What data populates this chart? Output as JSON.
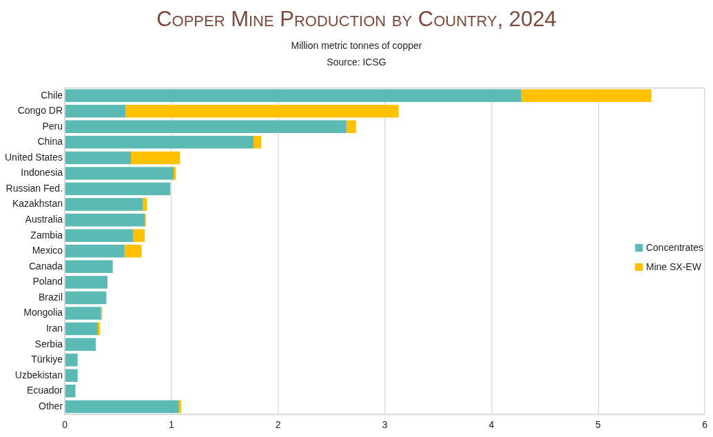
{
  "chart_data": {
    "type": "bar",
    "orientation": "horizontal",
    "stacked": true,
    "title": "Copper Mine Production by Country, 2024",
    "subtitle": "Million metric tonnes of copper",
    "annotations": [
      "Source: ICSG"
    ],
    "categories": [
      "Chile",
      "Congo DR",
      "Peru",
      "China",
      "United States",
      "Indonesia",
      "Russian Fed.",
      "Kazakhstan",
      "Australia",
      "Zambia",
      "Mexico",
      "Canada",
      "Poland",
      "Brazil",
      "Mongolia",
      "Iran",
      "Serbia",
      "Türkiye",
      "Uzbekistan",
      "Ecuador",
      "Other"
    ],
    "series": [
      {
        "name": "Concentrates",
        "color": "#5cbab5",
        "values": [
          4.28,
          0.57,
          2.64,
          1.77,
          0.62,
          1.02,
          0.99,
          0.73,
          0.75,
          0.64,
          0.56,
          0.45,
          0.4,
          0.39,
          0.34,
          0.31,
          0.29,
          0.12,
          0.12,
          0.1,
          1.07
        ]
      },
      {
        "name": "Mine SX-EW",
        "color": "#ffc000",
        "values": [
          1.22,
          2.56,
          0.09,
          0.07,
          0.46,
          0.02,
          0,
          0.04,
          0.01,
          0.11,
          0.16,
          0,
          0,
          0,
          0.01,
          0.02,
          0,
          0,
          0,
          0,
          0.02
        ]
      }
    ],
    "xlim": [
      0,
      6
    ],
    "xticks": [
      0,
      1,
      2,
      3,
      4,
      5,
      6
    ],
    "grid": "x",
    "legend": "right"
  }
}
